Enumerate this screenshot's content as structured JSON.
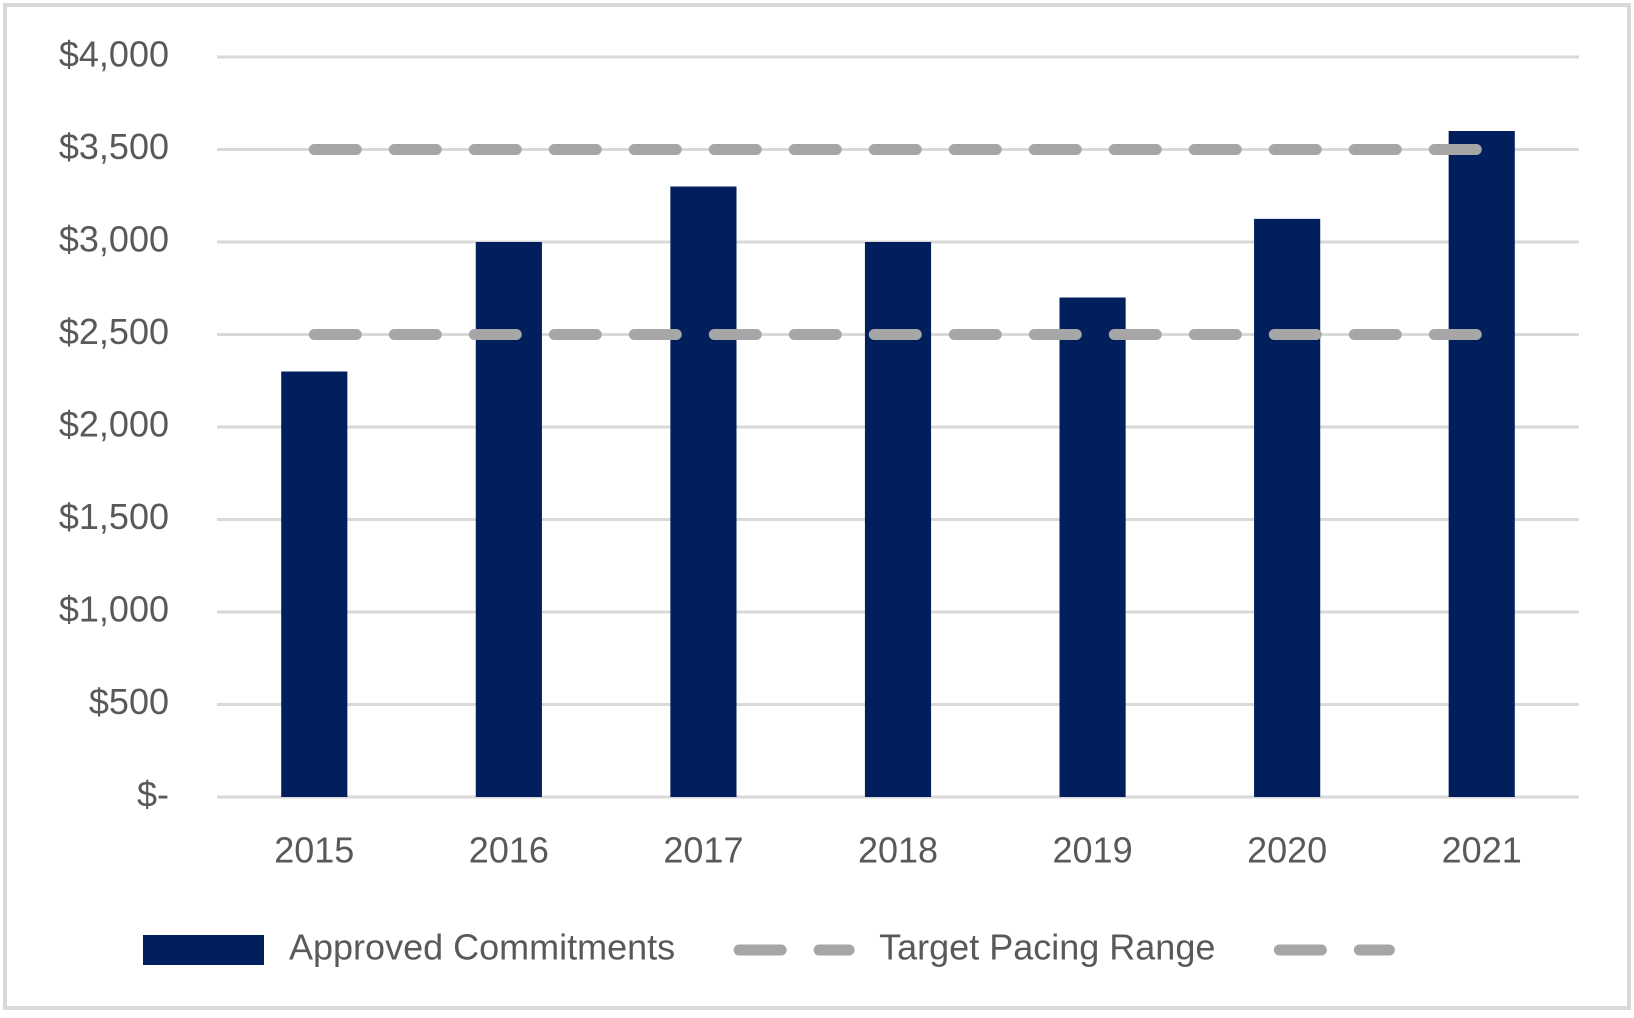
{
  "chart_data": {
    "type": "bar",
    "categories": [
      "2015",
      "2016",
      "2017",
      "2018",
      "2019",
      "2020",
      "2021"
    ],
    "series": [
      {
        "name": "Approved Commitments",
        "type": "bar",
        "color": "#001f5c",
        "values": [
          2300,
          3000,
          3300,
          3000,
          2700,
          3125,
          3600
        ]
      },
      {
        "name": "Target Pacing Range",
        "type": "line",
        "dashed": true,
        "color": "#a6a6a6",
        "values": [
          2500,
          2500,
          2500,
          2500,
          2500,
          2500,
          2500
        ]
      },
      {
        "name": null,
        "type": "line",
        "dashed": true,
        "color": "#a6a6a6",
        "values": [
          3500,
          3500,
          3500,
          3500,
          3500,
          3500,
          3500
        ]
      }
    ],
    "ylim": [
      0,
      4000
    ],
    "yticks": [
      {
        "value": 0,
        "label": "$-"
      },
      {
        "value": 500,
        "label": "$500"
      },
      {
        "value": 1000,
        "label": "$1,000"
      },
      {
        "value": 1500,
        "label": "$1,500"
      },
      {
        "value": 2000,
        "label": "$2,000"
      },
      {
        "value": 2500,
        "label": "$2,500"
      },
      {
        "value": 3000,
        "label": "$3,000"
      },
      {
        "value": 3500,
        "label": "$3,500"
      },
      {
        "value": 4000,
        "label": "$4,000"
      }
    ],
    "grid": true,
    "legend": "bottom"
  }
}
